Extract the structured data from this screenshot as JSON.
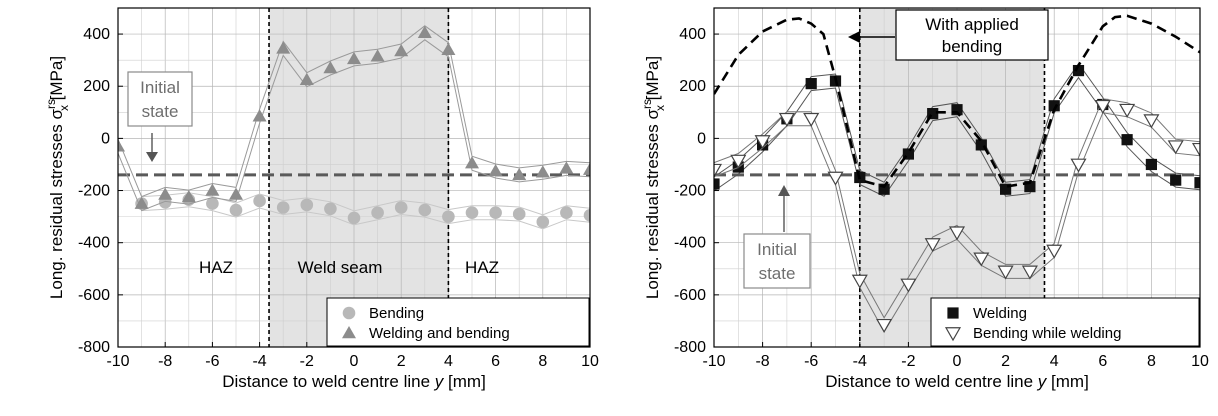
{
  "chart_data": [
    {
      "type": "scatter",
      "title": "",
      "xlabel_main": "Distance to weld centre line ",
      "xlabel_var": "y",
      "xlabel_unit": " [mm]",
      "ylabel_main": "Long. residual stresses σ",
      "ylabel_sup": "rs",
      "ylabel_sub": "x",
      "ylabel_unit": " [MPa]",
      "xlim": [
        -10,
        10
      ],
      "ylim": [
        -800,
        500
      ],
      "xticks": [
        -10,
        -8,
        -6,
        -4,
        -2,
        0,
        2,
        4,
        6,
        8,
        10
      ],
      "yticks": [
        -800,
        -600,
        -400,
        -200,
        0,
        200,
        400
      ],
      "grid": true,
      "legend_position": "bottom-right",
      "shaded_region": [
        -3.6,
        4
      ],
      "vlines": [
        -3.6,
        4
      ],
      "initial_state_line": -140,
      "annotations": {
        "initial_state_line1": "Initial",
        "initial_state_line2": "state",
        "haz_left": "HAZ",
        "weld_seam": "Weld seam",
        "haz_right": "HAZ"
      },
      "series": [
        {
          "name": "Bending",
          "marker": "circle",
          "x": [
            -9,
            -8,
            -7,
            -6,
            -5,
            -4,
            -3,
            -2,
            -1,
            0,
            1,
            2,
            3,
            4,
            5,
            6,
            7,
            8,
            9,
            10
          ],
          "y": [
            -250,
            -245,
            -235,
            -250,
            -275,
            -240,
            -265,
            -255,
            -270,
            -305,
            -285,
            -265,
            -275,
            -300,
            -285,
            -285,
            -290,
            -320,
            -285,
            -295
          ]
        },
        {
          "name": "Welding and bending",
          "marker": "triangle-up",
          "x": [
            -10,
            -9,
            -8,
            -7,
            -6,
            -5,
            -4,
            -3,
            -2,
            -1,
            0,
            1,
            2,
            3,
            4,
            5,
            6,
            7,
            8,
            9,
            10
          ],
          "y": [
            -30,
            -250,
            -215,
            -225,
            -200,
            -215,
            85,
            345,
            225,
            270,
            305,
            315,
            335,
            405,
            340,
            -95,
            -125,
            -140,
            -130,
            -115,
            -120
          ]
        }
      ]
    },
    {
      "type": "scatter",
      "title": "",
      "xlabel_main": "Distance to weld centre line ",
      "xlabel_var": "y",
      "xlabel_unit": " [mm]",
      "ylabel_main": "Long. residual stresses σ",
      "ylabel_sup": "rs",
      "ylabel_sub": "x",
      "ylabel_unit": " [MPa]",
      "xlim": [
        -10,
        10
      ],
      "ylim": [
        -800,
        500
      ],
      "xticks": [
        -10,
        -8,
        -6,
        -4,
        -2,
        0,
        2,
        4,
        6,
        8,
        10
      ],
      "yticks": [
        -800,
        -600,
        -400,
        -200,
        0,
        200,
        400
      ],
      "grid": true,
      "legend_position": "bottom-right",
      "shaded_region": [
        -4,
        3.6
      ],
      "vlines": [
        -4,
        3.6
      ],
      "initial_state_line": -140,
      "annotations": {
        "applied_bending_line1": "With applied",
        "applied_bending_line2": "bending",
        "initial_state_line1": "Initial",
        "initial_state_line2": "state"
      },
      "series": [
        {
          "name": "Welding",
          "marker": "square",
          "x": [
            -10,
            -9,
            -8,
            -7,
            -6,
            -5,
            -4,
            -3,
            -2,
            -1,
            0,
            1,
            2,
            3,
            4,
            5,
            6,
            7,
            8,
            9,
            10
          ],
          "y": [
            -175,
            -110,
            -25,
            75,
            210,
            220,
            -150,
            -195,
            -60,
            95,
            110,
            -25,
            -195,
            -185,
            125,
            260,
            130,
            -5,
            -100,
            -160,
            -170
          ]
        },
        {
          "name": "Bending while welding",
          "marker": "triangle-down",
          "x": [
            -10,
            -9,
            -8,
            -7,
            -6,
            -5,
            -4,
            -3,
            -2,
            -1,
            0,
            1,
            2,
            3,
            4,
            5,
            6,
            7,
            8,
            9,
            10
          ],
          "y": [
            -120,
            -85,
            -10,
            75,
            75,
            -150,
            -545,
            -715,
            -560,
            -405,
            -360,
            -460,
            -510,
            -510,
            -430,
            -100,
            125,
            110,
            70,
            -30,
            -40
          ]
        },
        {
          "name": "With applied bending (dashed)",
          "marker": "none",
          "x": [
            -10,
            -9,
            -8,
            -7,
            -6.5,
            -6,
            -5.5,
            -5,
            -4,
            -3,
            -2,
            -1,
            0,
            1,
            2,
            3,
            4,
            5,
            6,
            6.5,
            7,
            8,
            9,
            10
          ],
          "y": [
            170,
            320,
            410,
            455,
            460,
            440,
            400,
            230,
            -160,
            -185,
            -55,
            100,
            100,
            -10,
            -185,
            -170,
            110,
            280,
            430,
            465,
            470,
            440,
            390,
            330
          ]
        }
      ]
    }
  ]
}
